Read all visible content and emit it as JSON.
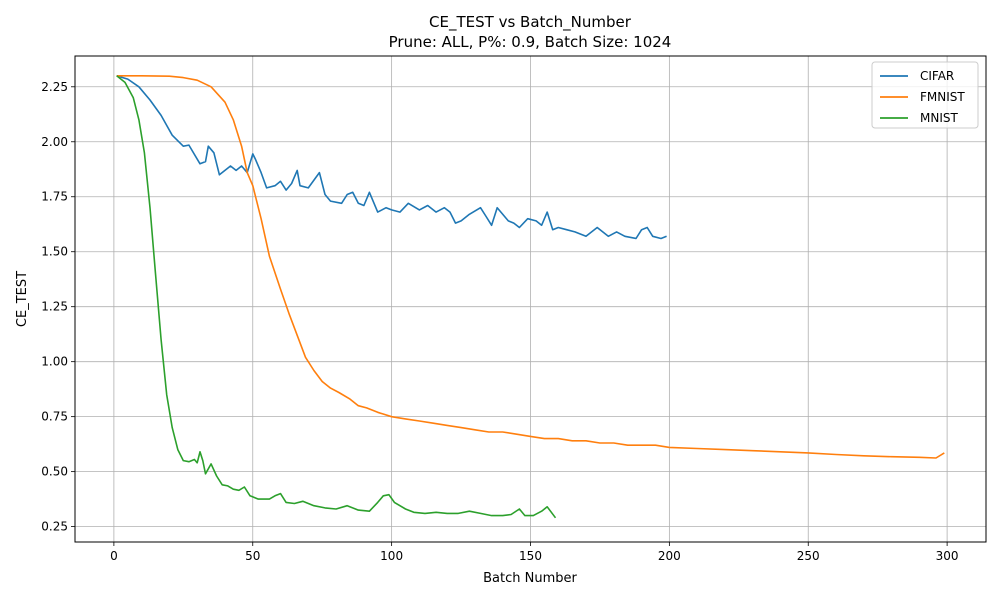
{
  "chart_data": {
    "type": "line",
    "title": "CE_TEST vs Batch_Number",
    "subtitle": "Prune: ALL, P%: 0.9, Batch Size: 1024",
    "xlabel": "Batch Number",
    "ylabel": "CE_TEST",
    "xlim": [
      -14,
      314
    ],
    "ylim": [
      0.18,
      2.39
    ],
    "xticks": [
      0,
      50,
      100,
      150,
      200,
      250,
      300
    ],
    "yticks": [
      0.25,
      0.5,
      0.75,
      1.0,
      1.25,
      1.5,
      1.75,
      2.0,
      2.25
    ],
    "xtick_labels": [
      "0",
      "50",
      "100",
      "150",
      "200",
      "250",
      "300"
    ],
    "ytick_labels": [
      "0.25",
      "0.50",
      "0.75",
      "1.00",
      "1.25",
      "1.50",
      "1.75",
      "2.00",
      "2.25"
    ],
    "grid": true,
    "legend_position": "top-right",
    "series": [
      {
        "name": "CIFAR",
        "color": "#1f77b4",
        "points": [
          [
            1,
            2.3
          ],
          [
            5,
            2.285
          ],
          [
            9,
            2.25
          ],
          [
            13,
            2.19
          ],
          [
            17,
            2.12
          ],
          [
            21,
            2.03
          ],
          [
            25,
            1.98
          ],
          [
            27,
            1.985
          ],
          [
            31,
            1.9
          ],
          [
            33,
            1.91
          ],
          [
            34,
            1.98
          ],
          [
            36,
            1.95
          ],
          [
            38,
            1.85
          ],
          [
            42,
            1.89
          ],
          [
            44,
            1.87
          ],
          [
            46,
            1.89
          ],
          [
            48,
            1.86
          ],
          [
            50,
            1.945
          ],
          [
            51,
            1.92
          ],
          [
            53,
            1.86
          ],
          [
            55,
            1.79
          ],
          [
            58,
            1.8
          ],
          [
            60,
            1.82
          ],
          [
            62,
            1.78
          ],
          [
            64,
            1.81
          ],
          [
            66,
            1.87
          ],
          [
            67,
            1.8
          ],
          [
            70,
            1.79
          ],
          [
            74,
            1.86
          ],
          [
            76,
            1.76
          ],
          [
            78,
            1.73
          ],
          [
            82,
            1.72
          ],
          [
            84,
            1.76
          ],
          [
            86,
            1.77
          ],
          [
            88,
            1.72
          ],
          [
            90,
            1.71
          ],
          [
            92,
            1.77
          ],
          [
            95,
            1.68
          ],
          [
            98,
            1.7
          ],
          [
            100,
            1.69
          ],
          [
            103,
            1.68
          ],
          [
            106,
            1.72
          ],
          [
            110,
            1.69
          ],
          [
            113,
            1.71
          ],
          [
            116,
            1.68
          ],
          [
            119,
            1.7
          ],
          [
            121,
            1.68
          ],
          [
            123,
            1.63
          ],
          [
            125,
            1.64
          ],
          [
            128,
            1.67
          ],
          [
            132,
            1.7
          ],
          [
            134,
            1.66
          ],
          [
            136,
            1.62
          ],
          [
            138,
            1.7
          ],
          [
            140,
            1.67
          ],
          [
            142,
            1.64
          ],
          [
            144,
            1.63
          ],
          [
            146,
            1.61
          ],
          [
            149,
            1.65
          ],
          [
            152,
            1.64
          ],
          [
            154,
            1.62
          ],
          [
            156,
            1.68
          ],
          [
            158,
            1.6
          ],
          [
            160,
            1.61
          ],
          [
            163,
            1.6
          ],
          [
            166,
            1.59
          ],
          [
            170,
            1.57
          ],
          [
            174,
            1.61
          ],
          [
            178,
            1.57
          ],
          [
            181,
            1.59
          ],
          [
            184,
            1.57
          ],
          [
            188,
            1.56
          ],
          [
            190,
            1.6
          ],
          [
            192,
            1.61
          ],
          [
            194,
            1.57
          ],
          [
            197,
            1.56
          ],
          [
            199,
            1.57
          ]
        ]
      },
      {
        "name": "FMNIST",
        "color": "#ff7f0e",
        "points": [
          [
            1,
            2.3
          ],
          [
            10,
            2.3
          ],
          [
            20,
            2.298
          ],
          [
            25,
            2.292
          ],
          [
            30,
            2.28
          ],
          [
            35,
            2.25
          ],
          [
            40,
            2.18
          ],
          [
            43,
            2.1
          ],
          [
            46,
            1.98
          ],
          [
            48,
            1.86
          ],
          [
            50,
            1.8
          ],
          [
            53,
            1.65
          ],
          [
            56,
            1.48
          ],
          [
            60,
            1.33
          ],
          [
            63,
            1.22
          ],
          [
            66,
            1.12
          ],
          [
            69,
            1.02
          ],
          [
            72,
            0.96
          ],
          [
            75,
            0.91
          ],
          [
            78,
            0.88
          ],
          [
            81,
            0.86
          ],
          [
            85,
            0.83
          ],
          [
            88,
            0.8
          ],
          [
            91,
            0.79
          ],
          [
            95,
            0.77
          ],
          [
            100,
            0.75
          ],
          [
            105,
            0.74
          ],
          [
            110,
            0.73
          ],
          [
            115,
            0.72
          ],
          [
            120,
            0.71
          ],
          [
            125,
            0.7
          ],
          [
            130,
            0.69
          ],
          [
            135,
            0.68
          ],
          [
            140,
            0.68
          ],
          [
            145,
            0.67
          ],
          [
            150,
            0.66
          ],
          [
            155,
            0.65
          ],
          [
            160,
            0.65
          ],
          [
            165,
            0.64
          ],
          [
            170,
            0.64
          ],
          [
            175,
            0.63
          ],
          [
            180,
            0.63
          ],
          [
            185,
            0.62
          ],
          [
            190,
            0.62
          ],
          [
            195,
            0.62
          ],
          [
            200,
            0.61
          ],
          [
            210,
            0.605
          ],
          [
            220,
            0.6
          ],
          [
            230,
            0.595
          ],
          [
            240,
            0.59
          ],
          [
            250,
            0.585
          ],
          [
            260,
            0.578
          ],
          [
            270,
            0.572
          ],
          [
            280,
            0.568
          ],
          [
            290,
            0.565
          ],
          [
            296,
            0.562
          ],
          [
            299,
            0.585
          ]
        ]
      },
      {
        "name": "MNIST",
        "color": "#2ca02c",
        "points": [
          [
            1,
            2.3
          ],
          [
            4,
            2.27
          ],
          [
            7,
            2.2
          ],
          [
            9,
            2.1
          ],
          [
            11,
            1.95
          ],
          [
            13,
            1.7
          ],
          [
            15,
            1.4
          ],
          [
            17,
            1.1
          ],
          [
            19,
            0.85
          ],
          [
            21,
            0.7
          ],
          [
            23,
            0.6
          ],
          [
            25,
            0.55
          ],
          [
            27,
            0.545
          ],
          [
            29,
            0.555
          ],
          [
            30,
            0.54
          ],
          [
            31,
            0.59
          ],
          [
            32,
            0.55
          ],
          [
            33,
            0.49
          ],
          [
            35,
            0.535
          ],
          [
            37,
            0.48
          ],
          [
            39,
            0.44
          ],
          [
            41,
            0.435
          ],
          [
            43,
            0.42
          ],
          [
            45,
            0.415
          ],
          [
            47,
            0.43
          ],
          [
            49,
            0.39
          ],
          [
            52,
            0.375
          ],
          [
            56,
            0.375
          ],
          [
            58,
            0.39
          ],
          [
            60,
            0.4
          ],
          [
            62,
            0.36
          ],
          [
            65,
            0.355
          ],
          [
            68,
            0.365
          ],
          [
            72,
            0.345
          ],
          [
            76,
            0.335
          ],
          [
            80,
            0.33
          ],
          [
            84,
            0.345
          ],
          [
            88,
            0.325
          ],
          [
            92,
            0.32
          ],
          [
            95,
            0.36
          ],
          [
            97,
            0.39
          ],
          [
            99,
            0.395
          ],
          [
            101,
            0.36
          ],
          [
            105,
            0.33
          ],
          [
            108,
            0.315
          ],
          [
            112,
            0.31
          ],
          [
            116,
            0.315
          ],
          [
            120,
            0.31
          ],
          [
            124,
            0.31
          ],
          [
            128,
            0.32
          ],
          [
            132,
            0.31
          ],
          [
            136,
            0.3
          ],
          [
            140,
            0.3
          ],
          [
            143,
            0.305
          ],
          [
            146,
            0.33
          ],
          [
            148,
            0.3
          ],
          [
            151,
            0.3
          ],
          [
            154,
            0.32
          ],
          [
            156,
            0.34
          ],
          [
            159,
            0.29
          ]
        ]
      }
    ]
  }
}
